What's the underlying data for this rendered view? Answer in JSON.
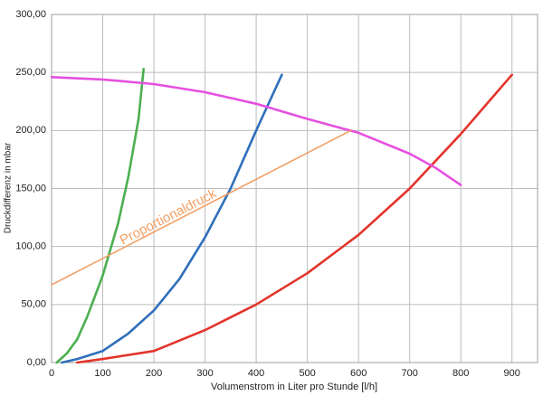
{
  "chart_data": {
    "type": "line",
    "x_label": "Volumenstrom in Liter pro Stunde [l/h]",
    "y_label": "Druckdifferenz in mbar",
    "annotation": "Proportionaldruck",
    "xlim": [
      0,
      950
    ],
    "xticks": [
      0,
      100,
      200,
      300,
      400,
      500,
      600,
      700,
      800,
      900
    ],
    "ylim": [
      0,
      300
    ],
    "yticks": [
      {
        "value": 0,
        "label": "0,00"
      },
      {
        "value": 50,
        "label": "50,00"
      },
      {
        "value": 100,
        "label": "100,00"
      },
      {
        "value": 150,
        "label": "150,00"
      },
      {
        "value": 200,
        "label": "200,00"
      },
      {
        "value": 250,
        "label": "250,00"
      },
      {
        "value": 300,
        "label": "300,00"
      }
    ],
    "grid": true,
    "series": [
      {
        "color": "#4caf50",
        "x": [
          10,
          30,
          50,
          70,
          100,
          130,
          150,
          170,
          180
        ],
        "values": [
          0,
          8,
          20,
          40,
          75,
          120,
          160,
          210,
          253
        ]
      },
      {
        "color": "#2f6fba",
        "x": [
          20,
          50,
          100,
          150,
          200,
          250,
          300,
          350,
          400,
          450
        ],
        "values": [
          0,
          3,
          10,
          25,
          45,
          72,
          108,
          150,
          200,
          248
        ]
      },
      {
        "color": "#e3342b",
        "x": [
          50,
          100,
          200,
          300,
          400,
          500,
          600,
          700,
          800,
          900
        ],
        "values": [
          0,
          3,
          10,
          28,
          50,
          77,
          110,
          150,
          197,
          248
        ]
      },
      {
        "color": "#e650e0",
        "x": [
          0,
          100,
          200,
          300,
          400,
          500,
          600,
          700,
          750,
          800
        ],
        "values": [
          246,
          244,
          240,
          233,
          223,
          210,
          198,
          180,
          168,
          153
        ]
      },
      {
        "color": "#f2a066",
        "x": [
          0,
          585
        ],
        "values": [
          67,
          200
        ]
      }
    ]
  }
}
